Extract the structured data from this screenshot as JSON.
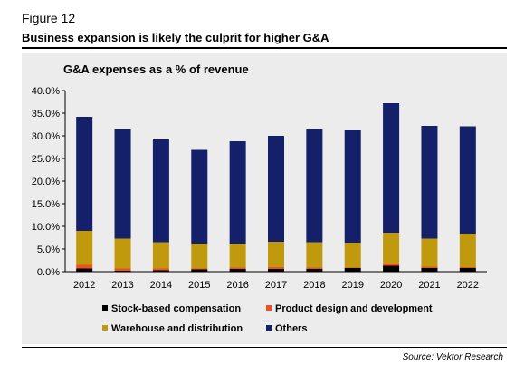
{
  "header": {
    "figure_label": "Figure 12",
    "headline": "Business expansion is likely the culprit for higher G&A"
  },
  "footer": {
    "source": "Source: Vektor Research"
  },
  "chart_data": {
    "type": "bar",
    "stacked": true,
    "title": "G&A expenses as a % of revenue",
    "categories": [
      "2012",
      "2013",
      "2014",
      "2015",
      "2016",
      "2017",
      "2018",
      "2019",
      "2020",
      "2021",
      "2022"
    ],
    "ylim": [
      0,
      40
    ],
    "yticks": [
      0,
      5,
      10,
      15,
      20,
      25,
      30,
      35,
      40
    ],
    "ytick_labels": [
      "0.0%",
      "5.0%",
      "10.0%",
      "15.0%",
      "20.0%",
      "25.0%",
      "30.0%",
      "35.0%",
      "40.0%"
    ],
    "grid": false,
    "legend_position": "bottom",
    "series": [
      {
        "name": "Stock-based compensation",
        "color": "#000000",
        "values": [
          0.7,
          0.2,
          0.3,
          0.5,
          0.6,
          0.6,
          0.6,
          0.8,
          1.3,
          0.8,
          0.8
        ]
      },
      {
        "name": "Product design and development",
        "color": "#f04e23",
        "values": [
          0.8,
          0.5,
          0.4,
          0.2,
          0.3,
          0.4,
          0.3,
          0.1,
          0.5,
          0.3,
          0.2
        ]
      },
      {
        "name": "Warehouse and distribution",
        "color": "#c09a0c",
        "values": [
          7.5,
          6.6,
          5.8,
          5.5,
          5.3,
          5.6,
          5.6,
          5.5,
          6.8,
          6.2,
          7.4
        ]
      },
      {
        "name": "Others",
        "color": "#14206a",
        "values": [
          25.2,
          24.1,
          22.7,
          20.7,
          22.6,
          23.4,
          24.9,
          24.8,
          28.6,
          24.9,
          23.7
        ]
      }
    ]
  }
}
